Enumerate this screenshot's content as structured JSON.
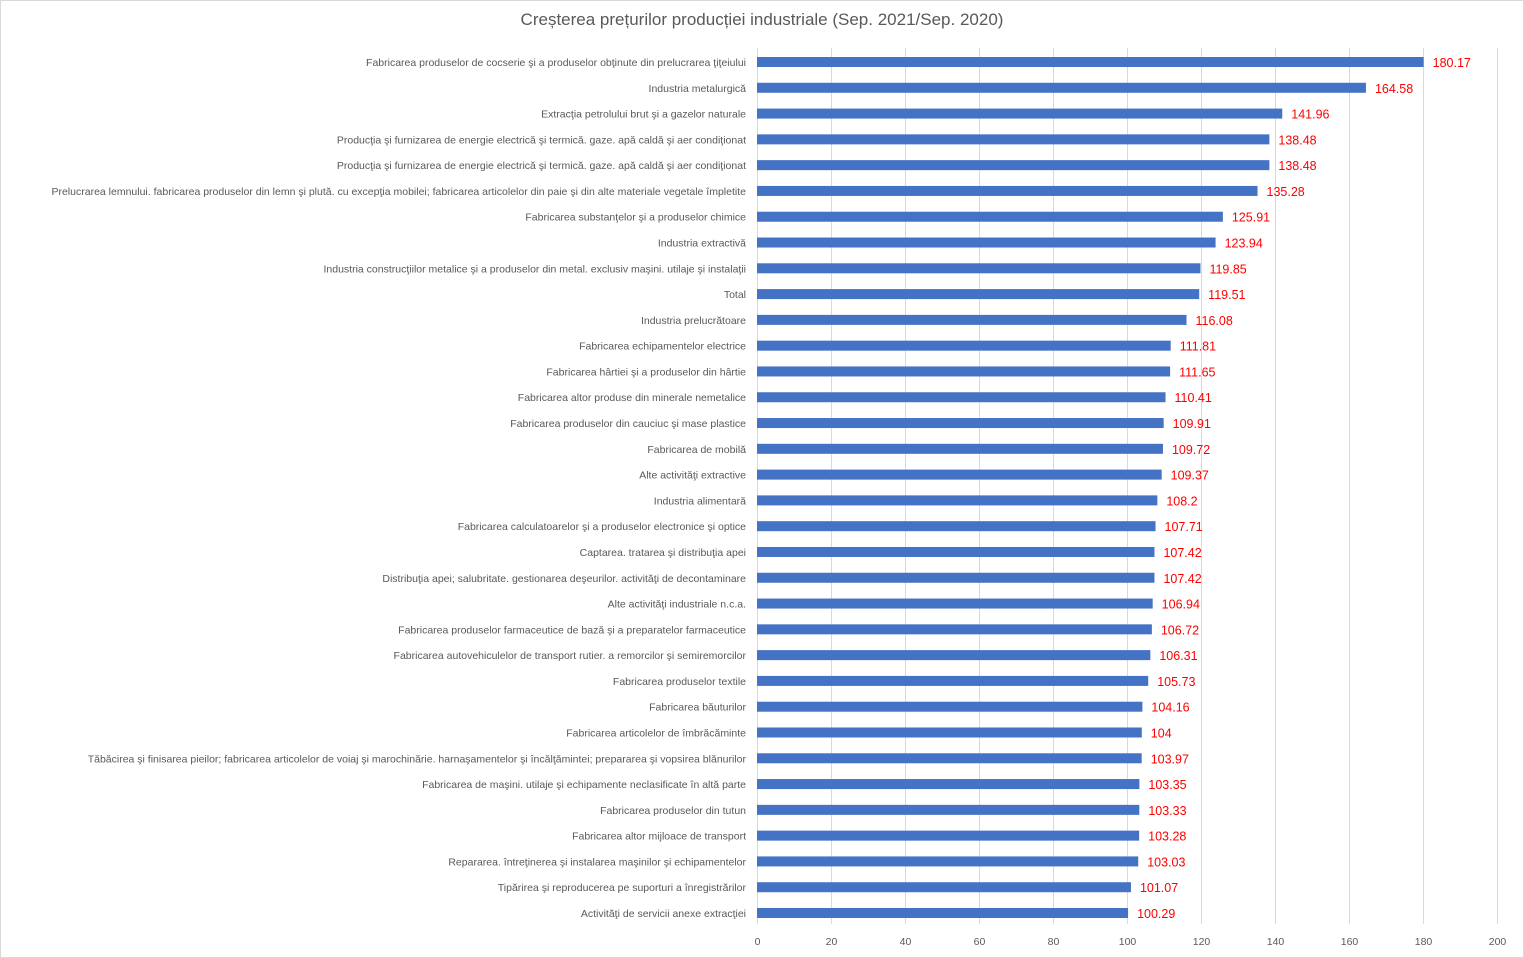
{
  "chart_data": {
    "type": "bar",
    "orientation": "horizontal",
    "title": "Creșterea prețurilor producției industriale (Sep. 2021/Sep. 2020)",
    "xlabel": "",
    "ylabel": "",
    "xlim": [
      0,
      200
    ],
    "xticks": [
      0,
      20,
      40,
      60,
      80,
      100,
      120,
      140,
      160,
      180,
      200
    ],
    "grid": true,
    "legend": "none",
    "bar_color": "#4472c4",
    "label_color": "#ff0000",
    "categories": [
      "Fabricarea produselor de cocserie şi a produselor obţinute din prelucrarea ţiţeiului",
      "Industria metalurgică",
      "Extracţia petrolului brut şi a gazelor naturale",
      "Producţia şi furnizarea de energie electrică şi termică. gaze. apă caldă şi aer condiţionat",
      "Producţia şi furnizarea de energie electrică şi termică. gaze. apă caldă şi aer condiţionat",
      "Prelucrarea lemnului. fabricarea produselor din lemn şi plută. cu excepţia mobilei; fabricarea articolelor din paie şi din alte materiale vegetale împletite",
      "Fabricarea substanţelor şi a produselor chimice",
      "Industria extractivă",
      "Industria construcţiilor metalice şi a produselor din metal. exclusiv maşini. utilaje şi instalaţii",
      "Total",
      "Industria prelucrătoare",
      "Fabricarea echipamentelor electrice",
      "Fabricarea hârtiei şi a produselor din hârtie",
      "Fabricarea altor produse din minerale nemetalice",
      "Fabricarea produselor din cauciuc şi mase plastice",
      "Fabricarea de mobilă",
      "Alte activităţi extractive",
      "Industria alimentară",
      "Fabricarea calculatoarelor şi a produselor electronice şi optice",
      "Captarea. tratarea şi distribuţia apei",
      "Distribuţia apei; salubritate. gestionarea deşeurilor. activităţi de decontaminare",
      "Alte activităţi industriale n.c.a.",
      "Fabricarea produselor farmaceutice de bază şi a preparatelor farmaceutice",
      "Fabricarea autovehiculelor de transport rutier. a remorcilor şi semiremorcilor",
      "Fabricarea produselor textile",
      "Fabricarea băuturilor",
      "Fabricarea articolelor de îmbrăcăminte",
      "Tăbăcirea şi finisarea pieilor; fabricarea articolelor de voiaj şi marochinărie. harnaşamentelor şi încălţămintei; prepararea şi vopsirea blănurilor",
      "Fabricarea de maşini. utilaje şi echipamente neclasificate în altă parte",
      "Fabricarea produselor din tutun",
      "Fabricarea altor mijloace de transport",
      "Repararea. întreţinerea şi instalarea maşinilor şi echipamentelor",
      "Tipărirea şi reproducerea pe suporturi a înregistrărilor",
      "Activităţi de servicii anexe extracţiei"
    ],
    "values": [
      180.17,
      164.58,
      141.96,
      138.48,
      138.48,
      135.28,
      125.91,
      123.94,
      119.85,
      119.51,
      116.08,
      111.81,
      111.65,
      110.41,
      109.91,
      109.72,
      109.37,
      108.2,
      107.71,
      107.42,
      107.42,
      106.94,
      106.72,
      106.31,
      105.73,
      104.16,
      104,
      103.97,
      103.35,
      103.33,
      103.28,
      103.03,
      101.07,
      100.29
    ],
    "value_labels": [
      "180.17",
      "164.58",
      "141.96",
      "138.48",
      "138.48",
      "135.28",
      "125.91",
      "123.94",
      "119.85",
      "119.51",
      "116.08",
      "111.81",
      "111.65",
      "110.41",
      "109.91",
      "109.72",
      "109.37",
      "108.2",
      "107.71",
      "107.42",
      "107.42",
      "106.94",
      "106.72",
      "106.31",
      "105.73",
      "104.16",
      "104",
      "103.97",
      "103.35",
      "103.33",
      "103.28",
      "103.03",
      "101.07",
      "100.29"
    ]
  }
}
